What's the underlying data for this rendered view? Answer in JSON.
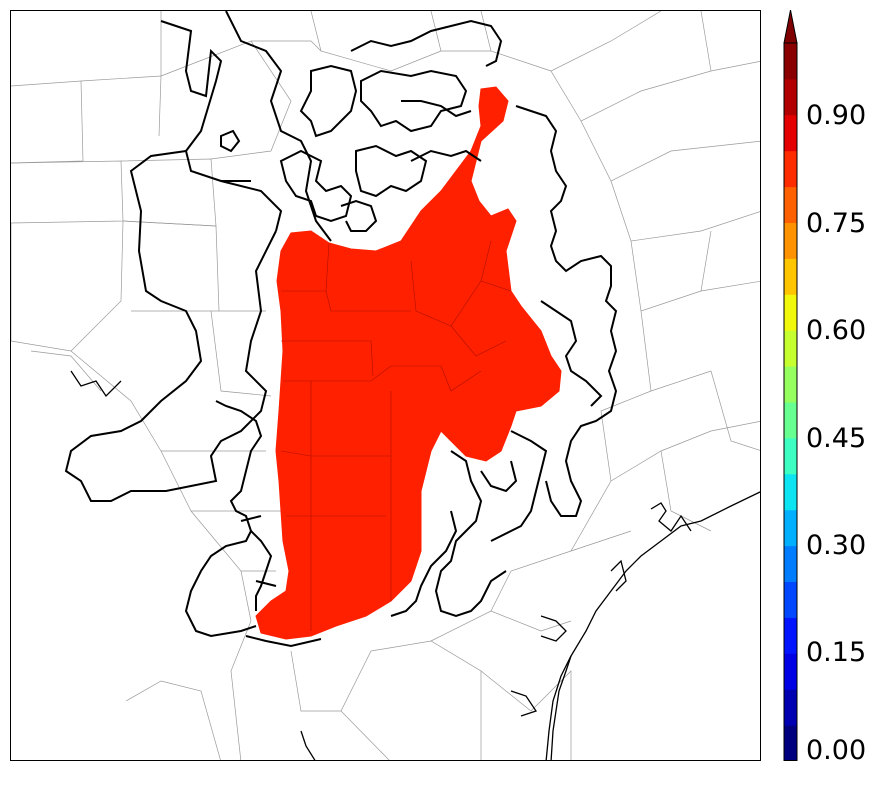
{
  "colorbar": {
    "min": 0.0,
    "max": 1.0,
    "extend": "max",
    "tick_labels": [
      "0.00",
      "0.15",
      "0.30",
      "0.45",
      "0.60",
      "0.75",
      "0.90"
    ],
    "tick_values": [
      0.0,
      0.15,
      0.3,
      0.45,
      0.6,
      0.75,
      0.9
    ],
    "colors": [
      "#00007f",
      "#0000b2",
      "#0000e5",
      "#0014ff",
      "#0048ff",
      "#007cff",
      "#00b0ff",
      "#0ce4f2",
      "#3cffc2",
      "#66ff90",
      "#96ff60",
      "#c6ff30",
      "#f2f80c",
      "#ffc600",
      "#ff9200",
      "#ff6000",
      "#ff2c00",
      "#e50000",
      "#b20000",
      "#8a0000"
    ]
  },
  "map": {
    "shaded_region_color": "#ff2000",
    "contour_color": "#000000",
    "coastline_color": "#000000",
    "county_line_color": "#999999"
  }
}
